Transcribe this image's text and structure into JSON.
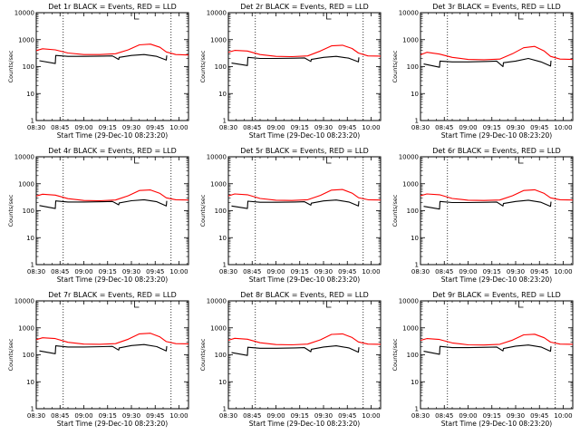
{
  "chart_data": [
    {
      "type": "line",
      "title": "Det 1r BLACK = Events, RED = LLD",
      "xlabel": "Start Time (29-Dec-10 08:23:20)",
      "ylabel": "Counts/sec",
      "yscale": "log",
      "ylim": [
        1,
        10000
      ],
      "xticks": [
        "08:30",
        "08:45",
        "09:00",
        "09:15",
        "09:30",
        "09:45",
        "10:00"
      ],
      "yticks": [
        "1",
        "10",
        "100",
        "1000",
        "10000"
      ],
      "x_range_min": [
        0,
        96
      ],
      "marker_lines_min": [
        17,
        85,
        97.5
      ],
      "series": [
        {
          "name": "RED = LLD",
          "color": "#ff0000",
          "x": [
            -7,
            4,
            12,
            20,
            30,
            40,
            50,
            58,
            65,
            72,
            78,
            82,
            88,
            96
          ],
          "y": [
            300,
            460,
            420,
            320,
            280,
            280,
            300,
            420,
            640,
            680,
            520,
            350,
            280,
            270
          ]
        },
        {
          "name": "BLACK = Events",
          "color": "#000000",
          "x": [
            2,
            12,
            12.3,
            20,
            30,
            42,
            48,
            52,
            52.3,
            60,
            68,
            76,
            82,
            82.3
          ],
          "y": [
            165,
            130,
            260,
            240,
            240,
            245,
            250,
            185,
            220,
            260,
            280,
            240,
            175,
            260
          ]
        }
      ]
    },
    {
      "type": "line",
      "title": "Det 2r BLACK = Events, RED = LLD",
      "xlabel": "Start Time (29-Dec-10 08:23:20)",
      "ylabel": "Counts/sec",
      "yscale": "log",
      "ylim": [
        1,
        10000
      ],
      "xticks": [
        "08:30",
        "08:45",
        "09:00",
        "09:15",
        "09:30",
        "09:45",
        "10:00"
      ],
      "yticks": [
        "1",
        "10",
        "100",
        "1000",
        "10000"
      ],
      "x_range_min": [
        0,
        96
      ],
      "marker_lines_min": [
        17,
        85,
        97.5
      ],
      "series": [
        {
          "name": "RED = LLD",
          "color": "#ff0000",
          "x": [
            -7,
            4,
            12,
            20,
            30,
            40,
            50,
            58,
            65,
            72,
            78,
            82,
            88,
            96
          ],
          "y": [
            260,
            400,
            380,
            280,
            240,
            235,
            250,
            380,
            590,
            620,
            470,
            320,
            250,
            245
          ]
        },
        {
          "name": "BLACK = Events",
          "color": "#000000",
          "x": [
            2,
            12,
            12.3,
            20,
            30,
            42,
            48,
            52,
            52.3,
            60,
            68,
            76,
            82,
            82.3
          ],
          "y": [
            135,
            110,
            220,
            200,
            200,
            205,
            210,
            155,
            185,
            220,
            240,
            205,
            150,
            220
          ]
        }
      ]
    },
    {
      "type": "line",
      "title": "Det 3r BLACK = Events, RED = LLD",
      "xlabel": "Start Time (29-Dec-10 08:23:20)",
      "ylabel": "Counts/sec",
      "yscale": "log",
      "ylim": [
        1,
        10000
      ],
      "xticks": [
        "08:30",
        "08:45",
        "09:00",
        "09:15",
        "09:30",
        "09:45",
        "10:00"
      ],
      "yticks": [
        "1",
        "10",
        "100",
        "1000",
        "10000"
      ],
      "x_range_min": [
        0,
        96
      ],
      "marker_lines_min": [
        17,
        85,
        97.5
      ],
      "series": [
        {
          "name": "RED = LLD",
          "color": "#ff0000",
          "x": [
            -7,
            4,
            12,
            20,
            30,
            40,
            50,
            58,
            65,
            72,
            78,
            82,
            88,
            96
          ],
          "y": [
            190,
            340,
            290,
            220,
            185,
            180,
            190,
            300,
            500,
            560,
            380,
            240,
            190,
            185
          ]
        },
        {
          "name": "BLACK = Events",
          "color": "#000000",
          "x": [
            2,
            12,
            12.3,
            20,
            30,
            42,
            48,
            52,
            52.3,
            60,
            68,
            76,
            82,
            82.3
          ],
          "y": [
            125,
            95,
            160,
            150,
            150,
            155,
            160,
            100,
            140,
            160,
            200,
            150,
            105,
            165
          ]
        }
      ]
    },
    {
      "type": "line",
      "title": "Det 4r BLACK = Events, RED = LLD",
      "xlabel": "Start Time (29-Dec-10 08:23:20)",
      "ylabel": "Counts/sec",
      "yscale": "log",
      "ylim": [
        1,
        10000
      ],
      "xticks": [
        "08:30",
        "08:45",
        "09:00",
        "09:15",
        "09:30",
        "09:45",
        "10:00"
      ],
      "yticks": [
        "1",
        "10",
        "100",
        "1000",
        "10000"
      ],
      "x_range_min": [
        0,
        96
      ],
      "marker_lines_min": [
        17,
        85,
        97.5
      ],
      "series": [
        {
          "name": "RED = LLD",
          "color": "#ff0000",
          "x": [
            -7,
            4,
            12,
            20,
            30,
            40,
            50,
            58,
            65,
            72,
            78,
            82,
            88,
            96
          ],
          "y": [
            270,
            410,
            380,
            280,
            240,
            235,
            250,
            360,
            560,
            590,
            440,
            300,
            255,
            250
          ]
        },
        {
          "name": "BLACK = Events",
          "color": "#000000",
          "x": [
            2,
            12,
            12.3,
            20,
            30,
            42,
            48,
            52,
            52.3,
            60,
            68,
            76,
            82,
            82.3
          ],
          "y": [
            155,
            120,
            230,
            210,
            210,
            215,
            220,
            165,
            195,
            235,
            255,
            215,
            150,
            230
          ]
        }
      ]
    },
    {
      "type": "line",
      "title": "Det 5r BLACK = Events, RED = LLD",
      "xlabel": "Start Time (29-Dec-10 08:23:20)",
      "ylabel": "Counts/sec",
      "yscale": "log",
      "ylim": [
        1,
        10000
      ],
      "xticks": [
        "08:30",
        "08:45",
        "09:00",
        "09:15",
        "09:30",
        "09:45",
        "10:00"
      ],
      "yticks": [
        "1",
        "10",
        "100",
        "1000",
        "10000"
      ],
      "x_range_min": [
        0,
        96
      ],
      "marker_lines_min": [
        17,
        85,
        97.5
      ],
      "series": [
        {
          "name": "RED = LLD",
          "color": "#ff0000",
          "x": [
            -7,
            4,
            12,
            20,
            30,
            40,
            50,
            58,
            65,
            72,
            78,
            82,
            88,
            96
          ],
          "y": [
            265,
            420,
            390,
            285,
            245,
            240,
            255,
            370,
            580,
            610,
            450,
            305,
            255,
            250
          ]
        },
        {
          "name": "BLACK = Events",
          "color": "#000000",
          "x": [
            2,
            12,
            12.3,
            20,
            30,
            42,
            48,
            52,
            52.3,
            60,
            68,
            76,
            82,
            82.3
          ],
          "y": [
            150,
            120,
            225,
            205,
            205,
            210,
            215,
            160,
            190,
            230,
            250,
            210,
            150,
            225
          ]
        }
      ]
    },
    {
      "type": "line",
      "title": "Det 6r BLACK = Events, RED = LLD",
      "xlabel": "Start Time (29-Dec-10 08:23:20)",
      "ylabel": "Counts/sec",
      "yscale": "log",
      "ylim": [
        1,
        10000
      ],
      "xticks": [
        "08:30",
        "08:45",
        "09:00",
        "09:15",
        "09:30",
        "09:45",
        "10:00"
      ],
      "yticks": [
        "1",
        "10",
        "100",
        "1000",
        "10000"
      ],
      "x_range_min": [
        0,
        96
      ],
      "marker_lines_min": [
        17,
        85,
        97.5
      ],
      "series": [
        {
          "name": "RED = LLD",
          "color": "#ff0000",
          "x": [
            -7,
            4,
            12,
            20,
            30,
            40,
            50,
            58,
            65,
            72,
            78,
            82,
            88,
            96
          ],
          "y": [
            280,
            420,
            390,
            285,
            245,
            240,
            250,
            360,
            560,
            600,
            440,
            300,
            255,
            250
          ]
        },
        {
          "name": "BLACK = Events",
          "color": "#000000",
          "x": [
            2,
            12,
            12.3,
            20,
            30,
            42,
            48,
            52,
            52.3,
            60,
            68,
            76,
            82,
            82.3
          ],
          "y": [
            145,
            115,
            220,
            200,
            200,
            205,
            210,
            150,
            185,
            220,
            245,
            205,
            145,
            215
          ]
        }
      ]
    },
    {
      "type": "line",
      "title": "Det 7r BLACK = Events, RED = LLD",
      "xlabel": "Start Time (29-Dec-10 08:23:20)",
      "ylabel": "Counts/sec",
      "yscale": "log",
      "ylim": [
        1,
        10000
      ],
      "xticks": [
        "08:30",
        "08:45",
        "09:00",
        "09:15",
        "09:30",
        "09:45",
        "10:00"
      ],
      "yticks": [
        "1",
        "10",
        "100",
        "1000",
        "10000"
      ],
      "x_range_min": [
        0,
        96
      ],
      "marker_lines_min": [
        17,
        85,
        97.5
      ],
      "series": [
        {
          "name": "RED = LLD",
          "color": "#ff0000",
          "x": [
            -7,
            4,
            12,
            20,
            30,
            40,
            50,
            58,
            65,
            72,
            78,
            82,
            88,
            96
          ],
          "y": [
            275,
            430,
            400,
            290,
            250,
            245,
            260,
            380,
            600,
            630,
            460,
            310,
            260,
            255
          ]
        },
        {
          "name": "BLACK = Events",
          "color": "#000000",
          "x": [
            2,
            12,
            12.3,
            20,
            30,
            42,
            48,
            52,
            52.3,
            60,
            68,
            76,
            82,
            82.3
          ],
          "y": [
            140,
            110,
            215,
            195,
            195,
            200,
            205,
            150,
            180,
            220,
            240,
            200,
            140,
            210
          ]
        }
      ]
    },
    {
      "type": "line",
      "title": "Det 8r BLACK = Events, RED = LLD",
      "xlabel": "Start Time (29-Dec-10 08:23:20)",
      "ylabel": "Counts/sec",
      "yscale": "log",
      "ylim": [
        1,
        10000
      ],
      "xticks": [
        "08:30",
        "08:45",
        "09:00",
        "09:15",
        "09:30",
        "09:45",
        "10:00"
      ],
      "yticks": [
        "1",
        "10",
        "100",
        "1000",
        "10000"
      ],
      "x_range_min": [
        0,
        96
      ],
      "marker_lines_min": [
        17,
        85,
        97.5
      ],
      "series": [
        {
          "name": "RED = LLD",
          "color": "#ff0000",
          "x": [
            -7,
            4,
            12,
            20,
            30,
            40,
            50,
            58,
            65,
            72,
            78,
            82,
            88,
            96
          ],
          "y": [
            260,
            410,
            380,
            280,
            240,
            235,
            250,
            360,
            570,
            600,
            440,
            300,
            250,
            245
          ]
        },
        {
          "name": "BLACK = Events",
          "color": "#000000",
          "x": [
            2,
            12,
            12.3,
            20,
            30,
            42,
            48,
            52,
            52.3,
            60,
            68,
            76,
            82,
            82.3
          ],
          "y": [
            120,
            95,
            190,
            175,
            175,
            180,
            185,
            130,
            160,
            195,
            215,
            180,
            125,
            190
          ]
        }
      ]
    },
    {
      "type": "line",
      "title": "Det 9r BLACK = Events, RED = LLD",
      "xlabel": "Start Time (29-Dec-10 08:23:20)",
      "ylabel": "Counts/sec",
      "yscale": "log",
      "ylim": [
        1,
        10000
      ],
      "xticks": [
        "08:30",
        "08:45",
        "09:00",
        "09:15",
        "09:30",
        "09:45",
        "10:00"
      ],
      "yticks": [
        "1",
        "10",
        "100",
        "1000",
        "10000"
      ],
      "x_range_min": [
        0,
        96
      ],
      "marker_lines_min": [
        17,
        85,
        97.5
      ],
      "series": [
        {
          "name": "RED = LLD",
          "color": "#ff0000",
          "x": [
            -7,
            4,
            12,
            20,
            30,
            40,
            50,
            58,
            65,
            72,
            78,
            82,
            88,
            96
          ],
          "y": [
            265,
            400,
            370,
            275,
            235,
            230,
            245,
            350,
            550,
            580,
            430,
            295,
            250,
            245
          ]
        },
        {
          "name": "BLACK = Events",
          "color": "#000000",
          "x": [
            2,
            12,
            12.3,
            20,
            30,
            42,
            48,
            52,
            52.3,
            60,
            68,
            76,
            82,
            82.3
          ],
          "y": [
            135,
            105,
            205,
            185,
            185,
            190,
            195,
            140,
            170,
            210,
            230,
            195,
            135,
            205
          ]
        }
      ]
    }
  ]
}
